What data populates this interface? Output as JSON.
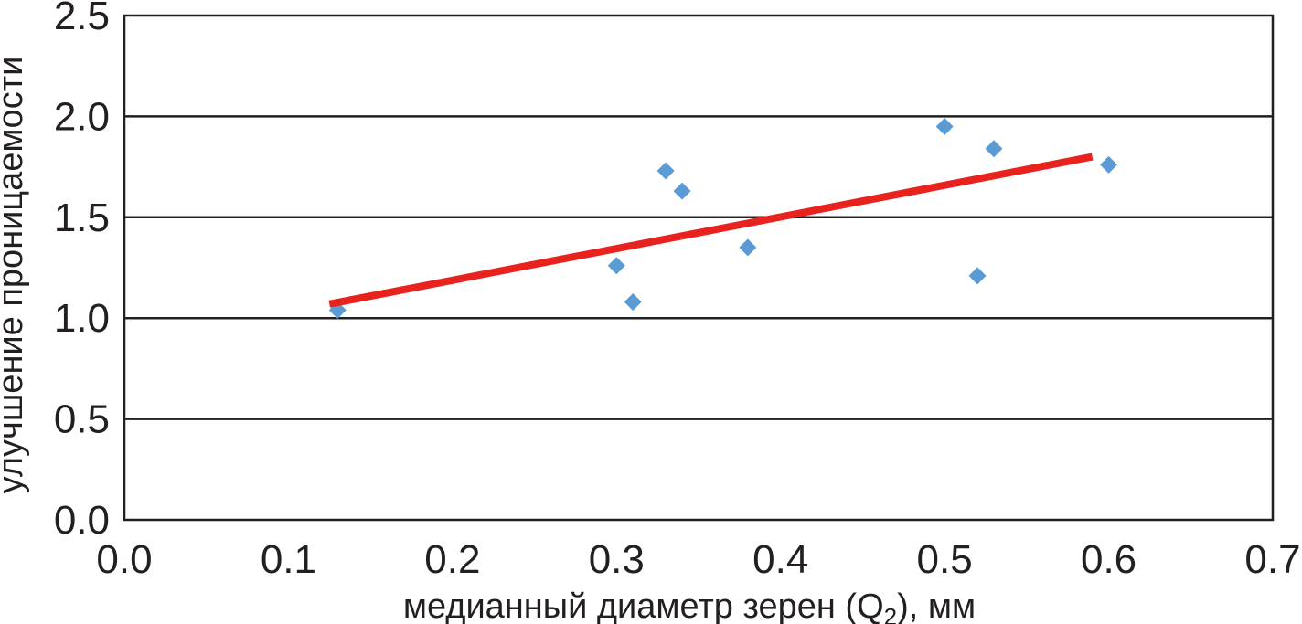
{
  "chart_data": {
    "type": "scatter",
    "title": "",
    "xlabel_main": "медианный диаметр зерен (Q",
    "xlabel_sub": "2",
    "xlabel_tail": "), мм",
    "ylabel": "улучшение проницаемости",
    "xlim": [
      0.0,
      0.7
    ],
    "ylim": [
      0.0,
      2.5
    ],
    "x_ticks": [
      "0.0",
      "0.1",
      "0.2",
      "0.3",
      "0.4",
      "0.5",
      "0.6",
      "0.7"
    ],
    "y_ticks": [
      "0.0",
      "0.5",
      "1.0",
      "1.5",
      "2.0",
      "2.5"
    ],
    "grid": "horizontal",
    "legend": "none",
    "series": [
      {
        "marker": "diamond",
        "color": "#5b9bd5",
        "points": [
          {
            "x": 0.13,
            "y": 1.04
          },
          {
            "x": 0.3,
            "y": 1.26
          },
          {
            "x": 0.31,
            "y": 1.08
          },
          {
            "x": 0.33,
            "y": 1.73
          },
          {
            "x": 0.34,
            "y": 1.63
          },
          {
            "x": 0.38,
            "y": 1.35
          },
          {
            "x": 0.5,
            "y": 1.95
          },
          {
            "x": 0.52,
            "y": 1.21
          },
          {
            "x": 0.53,
            "y": 1.84
          },
          {
            "x": 0.6,
            "y": 1.76
          }
        ]
      }
    ],
    "trendline": {
      "color": "#e8221c",
      "x": [
        0.125,
        0.59
      ],
      "y": [
        1.07,
        1.8
      ]
    }
  }
}
